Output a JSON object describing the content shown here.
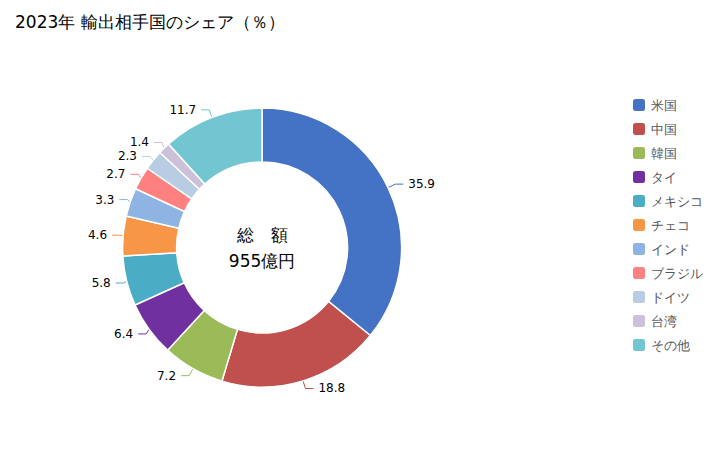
{
  "chart_data": {
    "type": "pie",
    "title": "2023年 輸出相手国のシェア（％）",
    "annotations": [
      "総　額",
      "955億円"
    ],
    "categories": [
      "米国",
      "中国",
      "韓国",
      "タイ",
      "メキシコ",
      "チェコ",
      "インド",
      "ブラジル",
      "ドイツ",
      "台湾",
      "その他"
    ],
    "values": [
      35.9,
      18.8,
      7.2,
      6.4,
      5.8,
      4.6,
      3.3,
      2.7,
      2.3,
      1.4,
      11.7
    ],
    "colors": [
      "#4472C4",
      "#C0504D",
      "#9BBB59",
      "#7030A0",
      "#4BACC6",
      "#F79646",
      "#8EB4E3",
      "#FF8080",
      "#B8CCE4",
      "#CCC0DA",
      "#71C6D1"
    ],
    "data_labels": true,
    "legend": "right"
  }
}
